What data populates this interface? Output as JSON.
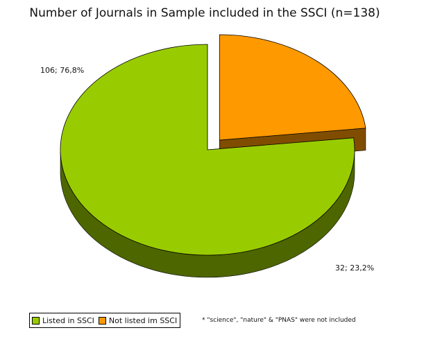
{
  "chart_data": {
    "type": "pie",
    "title": "Number of Journals in Sample included in the SSCI (n=138)",
    "slices": [
      {
        "name": "Listed in SSCI",
        "value": 106,
        "label": "106; 76,8%",
        "color": "#99cc00",
        "side_color": "#4d6600",
        "exploded": false
      },
      {
        "name": "Not listed im SSCI",
        "value": 32,
        "label": "32; 23,2%",
        "color": "#ff9900",
        "side_color": "#804d00",
        "exploded": true
      }
    ],
    "legend_placement": "bottom-left",
    "three_d": true
  },
  "footnote": "*  \"science\", \"nature\" & \"PNAS\" were not included"
}
